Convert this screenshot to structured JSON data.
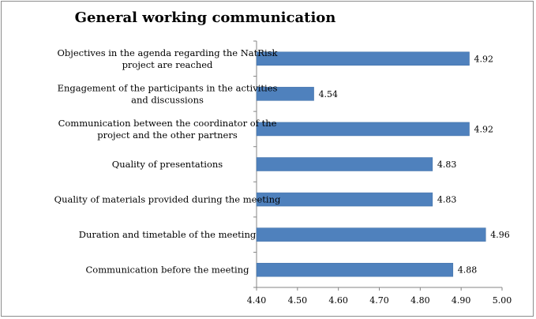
{
  "chart_data": {
    "type": "bar",
    "orientation": "horizontal",
    "title": "General working communication",
    "xlabel": "",
    "ylabel": "",
    "categories": [
      "Communication before the meeting",
      "Duration and timetable of the meeting",
      "Quality of materials provided during the meeting",
      "Quality of presentations",
      "Communication between the coordinator of the project and the other partners",
      "Engagement of the participants in the activities and discussions",
      "Objectives in the agenda regarding the NatRisk project are reached"
    ],
    "category_lines": [
      [
        "Communication before the meeting"
      ],
      [
        "Duration and timetable of the meeting"
      ],
      [
        "Quality of materials provided during the meeting"
      ],
      [
        "Quality of presentations"
      ],
      [
        "Communication between the coordinator of the",
        "project and the other partners"
      ],
      [
        "Engagement of the participants in the activities",
        "and discussions"
      ],
      [
        "Objectives in the agenda regarding the NatRisk",
        "project are reached"
      ]
    ],
    "values": [
      4.88,
      4.96,
      4.83,
      4.83,
      4.92,
      4.54,
      4.92
    ],
    "value_labels": [
      "4.88",
      "4.96",
      "4.83",
      "4.83",
      "4.92",
      "4.54",
      "4.92"
    ],
    "xlim": [
      4.4,
      5.0
    ],
    "xticks": [
      "4.40",
      "4.50",
      "4.60",
      "4.70",
      "4.80",
      "4.90",
      "5.00"
    ],
    "grid": false,
    "legend": "none",
    "bar_color": "#4F81BD"
  }
}
